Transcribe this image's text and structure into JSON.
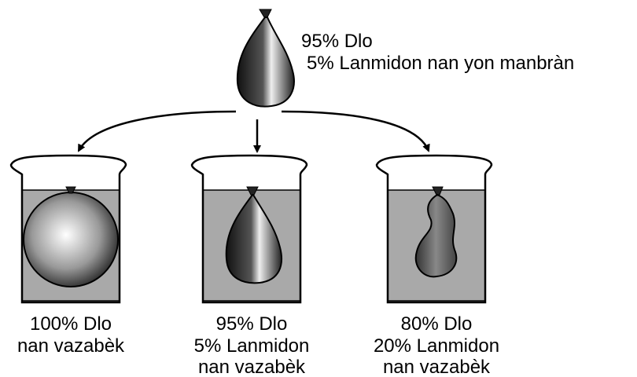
{
  "top_label": [
    "95% Dlo",
    "5% Lanmidon nan yon manbràn"
  ],
  "beakers": [
    {
      "label": [
        "100% Dlo",
        "nan vazabèk"
      ]
    },
    {
      "label": [
        "95% Dlo",
        "5% Lanmidon",
        "nan vazabèk"
      ]
    },
    {
      "label": [
        "80% Dlo",
        "20% Lanmidon",
        "nan vazabèk"
      ]
    }
  ]
}
